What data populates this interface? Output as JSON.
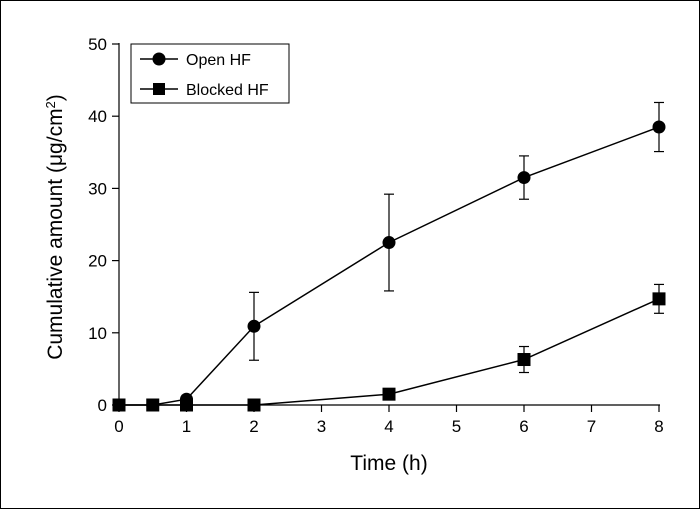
{
  "chart_data": {
    "type": "line",
    "xlabel": "Time (h)",
    "ylabel": {
      "main": "Cumulative amount (μg/cm",
      "sup": "2",
      "close": ")"
    },
    "xlim": [
      0,
      8
    ],
    "ylim": [
      0,
      50
    ],
    "x_ticks": [
      "0",
      "1",
      "2",
      "3",
      "4",
      "5",
      "6",
      "7",
      "8"
    ],
    "y_ticks": [
      "0",
      "10",
      "20",
      "30",
      "40",
      "50"
    ],
    "grid": false,
    "legend_position": "top-left",
    "series": [
      {
        "name": "Open HF",
        "marker": "circle",
        "x": [
          0,
          0.5,
          1,
          2,
          4,
          6,
          8
        ],
        "y": [
          0,
          0,
          0.8,
          10.9,
          22.5,
          31.5,
          38.5
        ],
        "err": [
          0,
          0,
          0,
          4.7,
          6.7,
          3.0,
          3.4
        ]
      },
      {
        "name": "Blocked HF",
        "marker": "square",
        "x": [
          0,
          0.5,
          1,
          2,
          4,
          6,
          8
        ],
        "y": [
          0,
          0,
          0,
          0,
          1.5,
          6.3,
          14.7
        ],
        "err": [
          0,
          0,
          0,
          0,
          0,
          1.8,
          2.0
        ]
      }
    ]
  }
}
